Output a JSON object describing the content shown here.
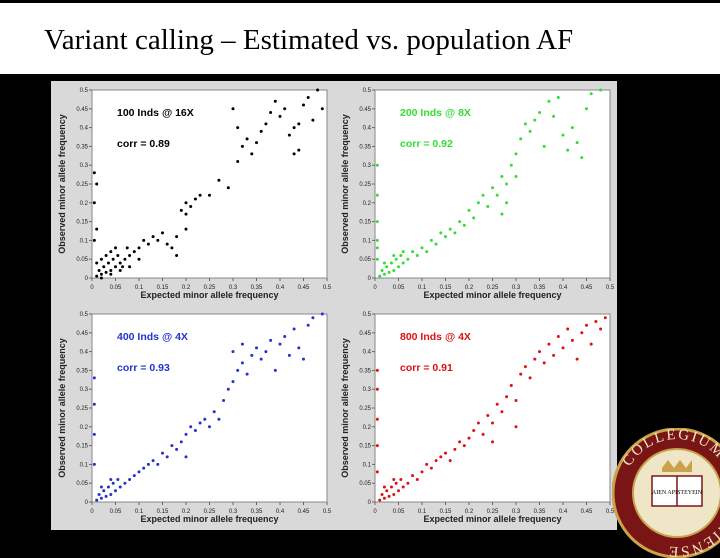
{
  "slide": {
    "title": "Variant calling – Estimated vs. population AF"
  },
  "seal": {
    "text": "COLLEGIUM BOSTONIENSE",
    "motto": "AIEN APISTEYEIN"
  },
  "chart_data": [
    {
      "type": "scatter",
      "panel": "top-left",
      "color": "#000000",
      "annotation": "100 Inds @ 16X",
      "corr_label": "corr = 0.89",
      "xlabel": "Expected minor allele frequency",
      "ylabel": "Observed minor allele frequency",
      "xlim": [
        0,
        0.5
      ],
      "ylim": [
        0,
        0.5
      ],
      "xticks": [
        "0",
        "0.05",
        "0.1",
        "0.15",
        "0.2",
        "0.25",
        "0.3",
        "0.35",
        "0.4",
        "0.45",
        "0.5"
      ],
      "yticks": [
        "0",
        "0.05",
        "0.1",
        "0.15",
        "0.2",
        "0.25",
        "0.3",
        "0.35",
        "0.4",
        "0.45",
        "0.5"
      ],
      "points": [
        [
          0.01,
          0.005
        ],
        [
          0.02,
          0.01
        ],
        [
          0.015,
          0.02
        ],
        [
          0.03,
          0.015
        ],
        [
          0.025,
          0.03
        ],
        [
          0.04,
          0.02
        ],
        [
          0.035,
          0.04
        ],
        [
          0.05,
          0.03
        ],
        [
          0.045,
          0.05
        ],
        [
          0.06,
          0.04
        ],
        [
          0.055,
          0.06
        ],
        [
          0.07,
          0.05
        ],
        [
          0.065,
          0.03
        ],
        [
          0.08,
          0.06
        ],
        [
          0.075,
          0.08
        ],
        [
          0.09,
          0.07
        ],
        [
          0.01,
          0.04
        ],
        [
          0.02,
          0.05
        ],
        [
          0.03,
          0.06
        ],
        [
          0.04,
          0.07
        ],
        [
          0.05,
          0.08
        ],
        [
          0.02,
          0.0
        ],
        [
          0.04,
          0.01
        ],
        [
          0.06,
          0.02
        ],
        [
          0.08,
          0.03
        ],
        [
          0.1,
          0.05
        ],
        [
          0.1,
          0.08
        ],
        [
          0.11,
          0.1
        ],
        [
          0.12,
          0.09
        ],
        [
          0.13,
          0.11
        ],
        [
          0.14,
          0.1
        ],
        [
          0.15,
          0.12
        ],
        [
          0.005,
          0.1
        ],
        [
          0.01,
          0.13
        ],
        [
          0.005,
          0.2
        ],
        [
          0.01,
          0.25
        ],
        [
          0.005,
          0.28
        ],
        [
          0.16,
          0.09
        ],
        [
          0.17,
          0.08
        ],
        [
          0.18,
          0.06
        ],
        [
          0.19,
          0.18
        ],
        [
          0.2,
          0.2
        ],
        [
          0.21,
          0.19
        ],
        [
          0.22,
          0.21
        ],
        [
          0.2,
          0.17
        ],
        [
          0.23,
          0.22
        ],
        [
          0.25,
          0.22
        ],
        [
          0.27,
          0.26
        ],
        [
          0.29,
          0.24
        ],
        [
          0.31,
          0.31
        ],
        [
          0.32,
          0.35
        ],
        [
          0.33,
          0.37
        ],
        [
          0.34,
          0.33
        ],
        [
          0.35,
          0.36
        ],
        [
          0.36,
          0.39
        ],
        [
          0.37,
          0.41
        ],
        [
          0.38,
          0.44
        ],
        [
          0.39,
          0.47
        ],
        [
          0.4,
          0.43
        ],
        [
          0.41,
          0.45
        ],
        [
          0.42,
          0.38
        ],
        [
          0.43,
          0.4
        ],
        [
          0.43,
          0.33
        ],
        [
          0.44,
          0.34
        ],
        [
          0.44,
          0.41
        ],
        [
          0.45,
          0.46
        ],
        [
          0.46,
          0.48
        ],
        [
          0.47,
          0.42
        ],
        [
          0.48,
          0.5
        ],
        [
          0.49,
          0.45
        ],
        [
          0.3,
          0.45
        ],
        [
          0.31,
          0.4
        ],
        [
          0.2,
          0.13
        ],
        [
          0.18,
          0.11
        ]
      ]
    },
    {
      "type": "scatter",
      "panel": "top-right",
      "color": "#33dd33",
      "annotation": "200 Inds @ 8X",
      "corr_label": "corr = 0.92",
      "xlabel": "Expected minor allele frequency",
      "ylabel": "Observed minor allele frequency",
      "xlim": [
        0,
        0.5
      ],
      "ylim": [
        0,
        0.5
      ],
      "xticks": [
        "0",
        "0.05",
        "0.1",
        "0.15",
        "0.2",
        "0.25",
        "0.3",
        "0.35",
        "0.4",
        "0.45",
        "0.5"
      ],
      "yticks": [
        "0",
        "0.05",
        "0.1",
        "0.15",
        "0.2",
        "0.25",
        "0.3",
        "0.35",
        "0.4",
        "0.45",
        "0.5"
      ],
      "points": [
        [
          0.01,
          0.005
        ],
        [
          0.02,
          0.01
        ],
        [
          0.015,
          0.02
        ],
        [
          0.03,
          0.015
        ],
        [
          0.025,
          0.03
        ],
        [
          0.04,
          0.02
        ],
        [
          0.035,
          0.04
        ],
        [
          0.05,
          0.03
        ],
        [
          0.045,
          0.05
        ],
        [
          0.06,
          0.04
        ],
        [
          0.055,
          0.06
        ],
        [
          0.07,
          0.05
        ],
        [
          0.02,
          0.04
        ],
        [
          0.04,
          0.06
        ],
        [
          0.06,
          0.07
        ],
        [
          0.005,
          0.05
        ],
        [
          0.005,
          0.08
        ],
        [
          0.005,
          0.1
        ],
        [
          0.005,
          0.15
        ],
        [
          0.005,
          0.22
        ],
        [
          0.005,
          0.3
        ],
        [
          0.08,
          0.07
        ],
        [
          0.09,
          0.06
        ],
        [
          0.1,
          0.08
        ],
        [
          0.11,
          0.07
        ],
        [
          0.12,
          0.1
        ],
        [
          0.13,
          0.09
        ],
        [
          0.14,
          0.12
        ],
        [
          0.15,
          0.11
        ],
        [
          0.16,
          0.13
        ],
        [
          0.17,
          0.12
        ],
        [
          0.18,
          0.15
        ],
        [
          0.19,
          0.14
        ],
        [
          0.2,
          0.18
        ],
        [
          0.21,
          0.16
        ],
        [
          0.22,
          0.2
        ],
        [
          0.23,
          0.22
        ],
        [
          0.24,
          0.19
        ],
        [
          0.25,
          0.24
        ],
        [
          0.26,
          0.22
        ],
        [
          0.27,
          0.27
        ],
        [
          0.28,
          0.25
        ],
        [
          0.29,
          0.3
        ],
        [
          0.3,
          0.33
        ],
        [
          0.31,
          0.37
        ],
        [
          0.32,
          0.41
        ],
        [
          0.33,
          0.39
        ],
        [
          0.34,
          0.42
        ],
        [
          0.35,
          0.44
        ],
        [
          0.36,
          0.35
        ],
        [
          0.37,
          0.47
        ],
        [
          0.38,
          0.43
        ],
        [
          0.39,
          0.48
        ],
        [
          0.4,
          0.38
        ],
        [
          0.41,
          0.34
        ],
        [
          0.42,
          0.4
        ],
        [
          0.43,
          0.36
        ],
        [
          0.44,
          0.32
        ],
        [
          0.45,
          0.45
        ],
        [
          0.46,
          0.49
        ],
        [
          0.48,
          0.5
        ],
        [
          0.3,
          0.27
        ],
        [
          0.28,
          0.2
        ],
        [
          0.27,
          0.17
        ]
      ]
    },
    {
      "type": "scatter",
      "panel": "bottom-left",
      "color": "#2233cc",
      "annotation": "400 Inds @ 4X",
      "corr_label": "corr = 0.93",
      "xlabel": "Expected minor allele frequency",
      "ylabel": "Observed minor allele frequency",
      "xlim": [
        0,
        0.5
      ],
      "ylim": [
        0,
        0.5
      ],
      "xticks": [
        "0",
        "0.05",
        "0.1",
        "0.15",
        "0.2",
        "0.25",
        "0.3",
        "0.35",
        "0.4",
        "0.45",
        "0.5"
      ],
      "yticks": [
        "0",
        "0.05",
        "0.1",
        "0.15",
        "0.2",
        "0.25",
        "0.3",
        "0.35",
        "0.4",
        "0.45",
        "0.5"
      ],
      "points": [
        [
          0.01,
          0.005
        ],
        [
          0.02,
          0.01
        ],
        [
          0.015,
          0.02
        ],
        [
          0.03,
          0.015
        ],
        [
          0.025,
          0.03
        ],
        [
          0.04,
          0.02
        ],
        [
          0.035,
          0.04
        ],
        [
          0.05,
          0.03
        ],
        [
          0.045,
          0.05
        ],
        [
          0.06,
          0.04
        ],
        [
          0.055,
          0.06
        ],
        [
          0.07,
          0.05
        ],
        [
          0.02,
          0.04
        ],
        [
          0.04,
          0.06
        ],
        [
          0.005,
          0.1
        ],
        [
          0.005,
          0.18
        ],
        [
          0.005,
          0.26
        ],
        [
          0.005,
          0.33
        ],
        [
          0.08,
          0.06
        ],
        [
          0.09,
          0.07
        ],
        [
          0.1,
          0.08
        ],
        [
          0.11,
          0.09
        ],
        [
          0.12,
          0.1
        ],
        [
          0.13,
          0.11
        ],
        [
          0.14,
          0.1
        ],
        [
          0.15,
          0.13
        ],
        [
          0.16,
          0.12
        ],
        [
          0.17,
          0.15
        ],
        [
          0.18,
          0.14
        ],
        [
          0.19,
          0.16
        ],
        [
          0.2,
          0.18
        ],
        [
          0.21,
          0.2
        ],
        [
          0.22,
          0.19
        ],
        [
          0.23,
          0.21
        ],
        [
          0.24,
          0.22
        ],
        [
          0.25,
          0.2
        ],
        [
          0.26,
          0.24
        ],
        [
          0.27,
          0.22
        ],
        [
          0.28,
          0.27
        ],
        [
          0.29,
          0.3
        ],
        [
          0.3,
          0.32
        ],
        [
          0.31,
          0.35
        ],
        [
          0.32,
          0.37
        ],
        [
          0.33,
          0.34
        ],
        [
          0.34,
          0.39
        ],
        [
          0.35,
          0.41
        ],
        [
          0.36,
          0.38
        ],
        [
          0.37,
          0.4
        ],
        [
          0.38,
          0.43
        ],
        [
          0.39,
          0.35
        ],
        [
          0.4,
          0.42
        ],
        [
          0.41,
          0.44
        ],
        [
          0.42,
          0.39
        ],
        [
          0.43,
          0.46
        ],
        [
          0.44,
          0.41
        ],
        [
          0.45,
          0.38
        ],
        [
          0.46,
          0.47
        ],
        [
          0.47,
          0.49
        ],
        [
          0.49,
          0.5
        ],
        [
          0.3,
          0.4
        ],
        [
          0.32,
          0.42
        ],
        [
          0.2,
          0.12
        ]
      ]
    },
    {
      "type": "scatter",
      "panel": "bottom-right",
      "color": "#dd1111",
      "annotation": "800 Inds @ 4X",
      "corr_label": "corr = 0.91",
      "xlabel": "Expected minor allele frequency",
      "ylabel": "Observed minor allele frequency",
      "xlim": [
        0,
        0.5
      ],
      "ylim": [
        0,
        0.5
      ],
      "xticks": [
        "0",
        "0.05",
        "0.1",
        "0.15",
        "0.2",
        "0.25",
        "0.3",
        "0.35",
        "0.4",
        "0.45",
        "0.5"
      ],
      "yticks": [
        "0",
        "0.05",
        "0.1",
        "0.15",
        "0.2",
        "0.25",
        "0.3",
        "0.35",
        "0.4",
        "0.45",
        "0.5"
      ],
      "points": [
        [
          0.01,
          0.005
        ],
        [
          0.02,
          0.01
        ],
        [
          0.015,
          0.02
        ],
        [
          0.03,
          0.015
        ],
        [
          0.025,
          0.03
        ],
        [
          0.04,
          0.02
        ],
        [
          0.035,
          0.04
        ],
        [
          0.05,
          0.03
        ],
        [
          0.045,
          0.05
        ],
        [
          0.06,
          0.04
        ],
        [
          0.055,
          0.06
        ],
        [
          0.07,
          0.05
        ],
        [
          0.02,
          0.04
        ],
        [
          0.04,
          0.06
        ],
        [
          0.005,
          0.08
        ],
        [
          0.005,
          0.15
        ],
        [
          0.005,
          0.22
        ],
        [
          0.005,
          0.3
        ],
        [
          0.005,
          0.35
        ],
        [
          0.08,
          0.07
        ],
        [
          0.09,
          0.06
        ],
        [
          0.1,
          0.08
        ],
        [
          0.11,
          0.1
        ],
        [
          0.12,
          0.09
        ],
        [
          0.13,
          0.11
        ],
        [
          0.14,
          0.12
        ],
        [
          0.15,
          0.13
        ],
        [
          0.16,
          0.11
        ],
        [
          0.17,
          0.14
        ],
        [
          0.18,
          0.16
        ],
        [
          0.19,
          0.15
        ],
        [
          0.2,
          0.17
        ],
        [
          0.21,
          0.19
        ],
        [
          0.22,
          0.21
        ],
        [
          0.23,
          0.18
        ],
        [
          0.24,
          0.23
        ],
        [
          0.25,
          0.21
        ],
        [
          0.26,
          0.26
        ],
        [
          0.27,
          0.24
        ],
        [
          0.28,
          0.28
        ],
        [
          0.29,
          0.31
        ],
        [
          0.3,
          0.27
        ],
        [
          0.31,
          0.34
        ],
        [
          0.32,
          0.36
        ],
        [
          0.33,
          0.33
        ],
        [
          0.34,
          0.38
        ],
        [
          0.35,
          0.4
        ],
        [
          0.36,
          0.37
        ],
        [
          0.37,
          0.42
        ],
        [
          0.38,
          0.39
        ],
        [
          0.39,
          0.44
        ],
        [
          0.4,
          0.41
        ],
        [
          0.41,
          0.46
        ],
        [
          0.42,
          0.43
        ],
        [
          0.43,
          0.38
        ],
        [
          0.44,
          0.45
        ],
        [
          0.45,
          0.47
        ],
        [
          0.46,
          0.42
        ],
        [
          0.47,
          0.48
        ],
        [
          0.48,
          0.46
        ],
        [
          0.49,
          0.49
        ],
        [
          0.25,
          0.16
        ],
        [
          0.3,
          0.2
        ]
      ]
    }
  ]
}
